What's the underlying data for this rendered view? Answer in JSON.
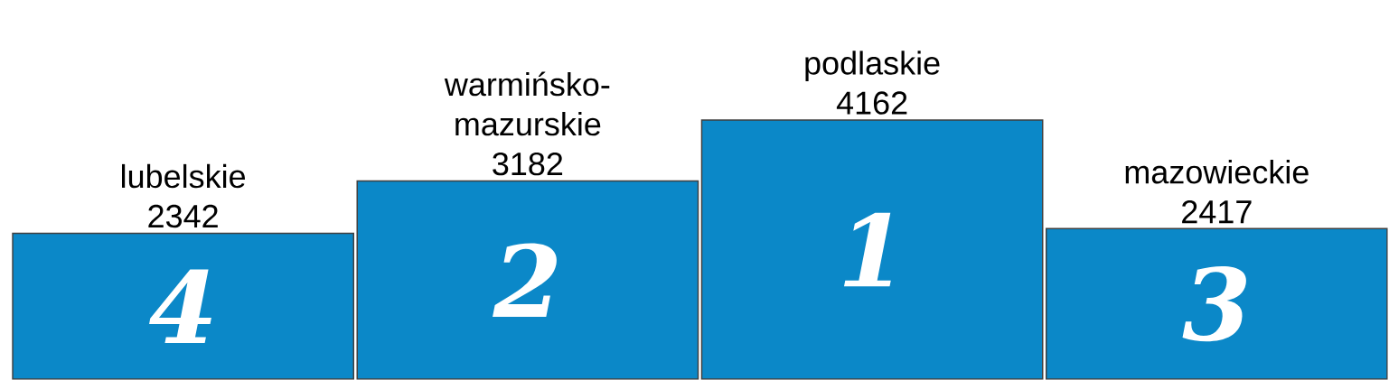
{
  "chart_data": {
    "type": "bar",
    "categories": [
      "lubelskie",
      "warmińsko-mazurskie",
      "podlaskie",
      "mazowieckie"
    ],
    "values": [
      2342,
      3182,
      4162,
      2417
    ],
    "value_labels": [
      "2342",
      "3182",
      "4162",
      "2417"
    ],
    "color": "#0b88c8",
    "annotations": [
      "4",
      "2",
      "1",
      "3"
    ]
  }
}
